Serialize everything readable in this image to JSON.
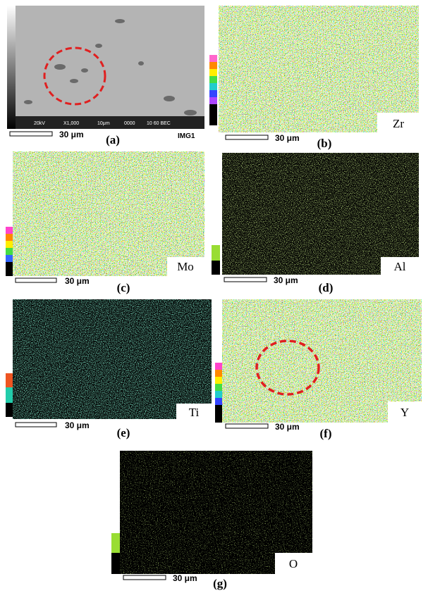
{
  "panels": [
    {
      "label": "(a)",
      "scale_bar": "30 μm",
      "image_id": "IMG1",
      "sem_info": [
        "20kV",
        "X1,000",
        "10μm",
        "0000",
        "10 60 BEC"
      ]
    },
    {
      "label": "(b)",
      "scale_bar": "30 μm",
      "element": "Zr"
    },
    {
      "label": "(c)",
      "scale_bar": "30 μm",
      "element": "Mo"
    },
    {
      "label": "(d)",
      "scale_bar": "30 μm",
      "element": "Al"
    },
    {
      "label": "(e)",
      "scale_bar": "30 μm",
      "element": "Ti"
    },
    {
      "label": "(f)",
      "scale_bar": "30 μm",
      "element": "Y"
    },
    {
      "label": "(g)",
      "scale_bar": "30 μm",
      "element": "O"
    }
  ]
}
